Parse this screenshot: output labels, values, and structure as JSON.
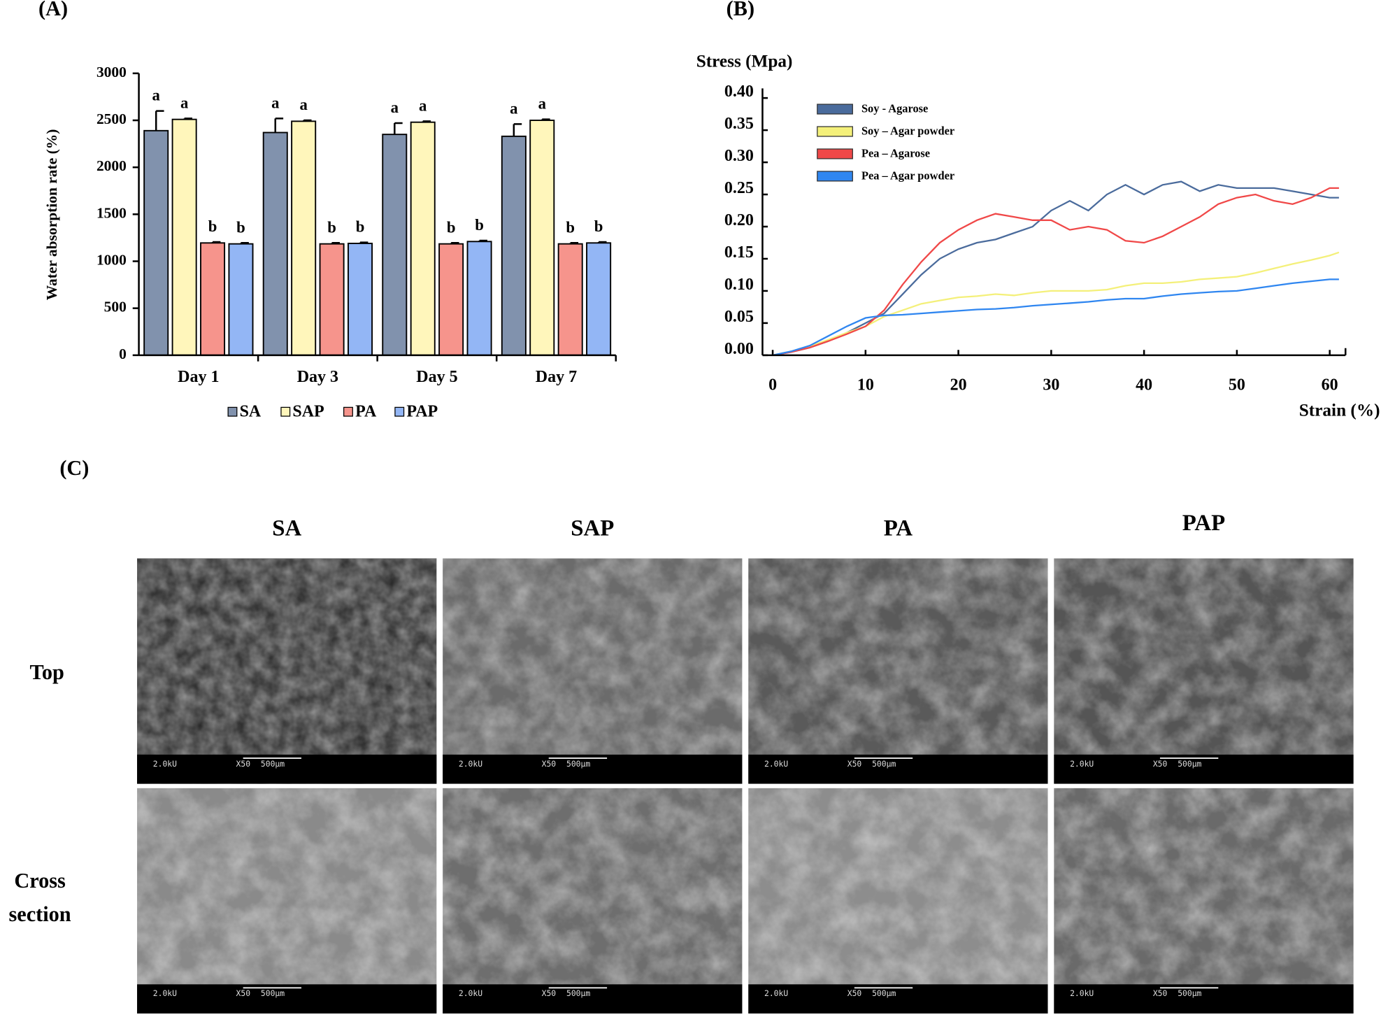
{
  "chart_data": [
    {
      "type": "bar",
      "title": "(A)",
      "y_label": "Water absorption rate (%)",
      "categories": [
        "Day 1",
        "Day 3",
        "Day 5",
        "Day 7"
      ],
      "series": [
        {
          "name": "SA",
          "color": "#8192ad",
          "values": [
            2390,
            2370,
            2350,
            2330
          ],
          "errors": [
            210,
            150,
            120,
            130
          ],
          "labels": [
            "a",
            "a",
            "a",
            "a"
          ]
        },
        {
          "name": "SAP",
          "color": "#fff6bb",
          "values": [
            2510,
            2490,
            2480,
            2500
          ],
          "errors": [
            10,
            10,
            10,
            10
          ],
          "labels": [
            "a",
            "a",
            "a",
            "a"
          ]
        },
        {
          "name": "PA",
          "color": "#f6948c",
          "values": [
            1195,
            1185,
            1185,
            1185
          ],
          "errors": [
            10,
            10,
            10,
            10
          ],
          "labels": [
            "b",
            "b",
            "b",
            "b"
          ]
        },
        {
          "name": "PAP",
          "color": "#93b6f5",
          "values": [
            1185,
            1190,
            1210,
            1195
          ],
          "errors": [
            10,
            10,
            10,
            10
          ],
          "labels": [
            "b",
            "b",
            "b",
            "b"
          ]
        }
      ],
      "ylim": [
        0,
        3000
      ],
      "yticks": [
        0,
        500,
        1000,
        1500,
        2000,
        2500,
        3000
      ],
      "legend": "bottom"
    },
    {
      "type": "line",
      "title": "(B)",
      "y_label": "Stress (Mpa)",
      "x_label": "Strain (%)",
      "x": [
        0,
        2,
        4,
        6,
        8,
        10,
        12,
        14,
        16,
        18,
        20,
        22,
        24,
        26,
        28,
        30,
        32,
        34,
        36,
        38,
        40,
        42,
        44,
        46,
        48,
        50,
        52,
        54,
        56,
        58,
        60,
        61
      ],
      "series": [
        {
          "name": "Soy - Agarose",
          "color": "#4a6b9c",
          "values": [
            0,
            0.005,
            0.012,
            0.022,
            0.035,
            0.05,
            0.065,
            0.095,
            0.125,
            0.15,
            0.165,
            0.175,
            0.18,
            0.19,
            0.2,
            0.225,
            0.24,
            0.225,
            0.25,
            0.265,
            0.25,
            0.265,
            0.27,
            0.255,
            0.265,
            0.26,
            0.26,
            0.26,
            0.255,
            0.25,
            0.245,
            0.245
          ]
        },
        {
          "name": "Soy – Agar powder",
          "color": "#f4f07a",
          "values": [
            0,
            0.006,
            0.014,
            0.024,
            0.035,
            0.045,
            0.06,
            0.07,
            0.08,
            0.085,
            0.09,
            0.092,
            0.095,
            0.093,
            0.097,
            0.1,
            0.1,
            0.1,
            0.102,
            0.108,
            0.112,
            0.112,
            0.114,
            0.118,
            0.12,
            0.122,
            0.128,
            0.135,
            0.142,
            0.148,
            0.155,
            0.16
          ]
        },
        {
          "name": "Pea – Agarose",
          "color": "#f04848",
          "values": [
            0,
            0.005,
            0.012,
            0.022,
            0.033,
            0.045,
            0.07,
            0.11,
            0.145,
            0.175,
            0.195,
            0.21,
            0.22,
            0.215,
            0.21,
            0.21,
            0.195,
            0.2,
            0.195,
            0.178,
            0.175,
            0.185,
            0.2,
            0.215,
            0.235,
            0.245,
            0.25,
            0.24,
            0.235,
            0.245,
            0.26,
            0.26
          ]
        },
        {
          "name": "Pea – Agar powder",
          "color": "#2f86f0",
          "values": [
            0,
            0.006,
            0.015,
            0.03,
            0.045,
            0.058,
            0.062,
            0.063,
            0.065,
            0.067,
            0.069,
            0.071,
            0.072,
            0.074,
            0.077,
            0.079,
            0.081,
            0.083,
            0.086,
            0.088,
            0.088,
            0.092,
            0.095,
            0.097,
            0.099,
            0.1,
            0.104,
            0.108,
            0.112,
            0.115,
            0.118,
            0.118
          ]
        }
      ],
      "xlim": [
        -1.1,
        61.7
      ],
      "xticks": [
        0,
        10,
        20,
        30,
        40,
        50,
        60
      ],
      "ylim": [
        0,
        0.415
      ],
      "yticks": [
        {
          "value": 0,
          "label": "0.00"
        },
        {
          "value": 0.05,
          "label": "0.05"
        },
        {
          "value": 0.1,
          "label": "0.10"
        },
        {
          "value": 0.15,
          "label": "0.15"
        },
        {
          "value": 0.2,
          "label": "0.20"
        },
        {
          "value": 0.25,
          "label": "0.25"
        },
        {
          "value": 0.3,
          "label": "0.30"
        },
        {
          "value": 0.35,
          "label": "0.35"
        },
        {
          "value": 0.4,
          "label": "0.40"
        }
      ],
      "legend": "upper left"
    }
  ],
  "panel_c": {
    "label": "(C)",
    "columns": [
      "SA",
      "SAP",
      "PA",
      "PAP"
    ],
    "row_labels": [
      [
        "Top"
      ],
      [
        "Cross",
        "section"
      ]
    ],
    "scale_bar": {
      "voltage": "2.0kU",
      "magnification": "X50",
      "length": "500μm"
    }
  }
}
